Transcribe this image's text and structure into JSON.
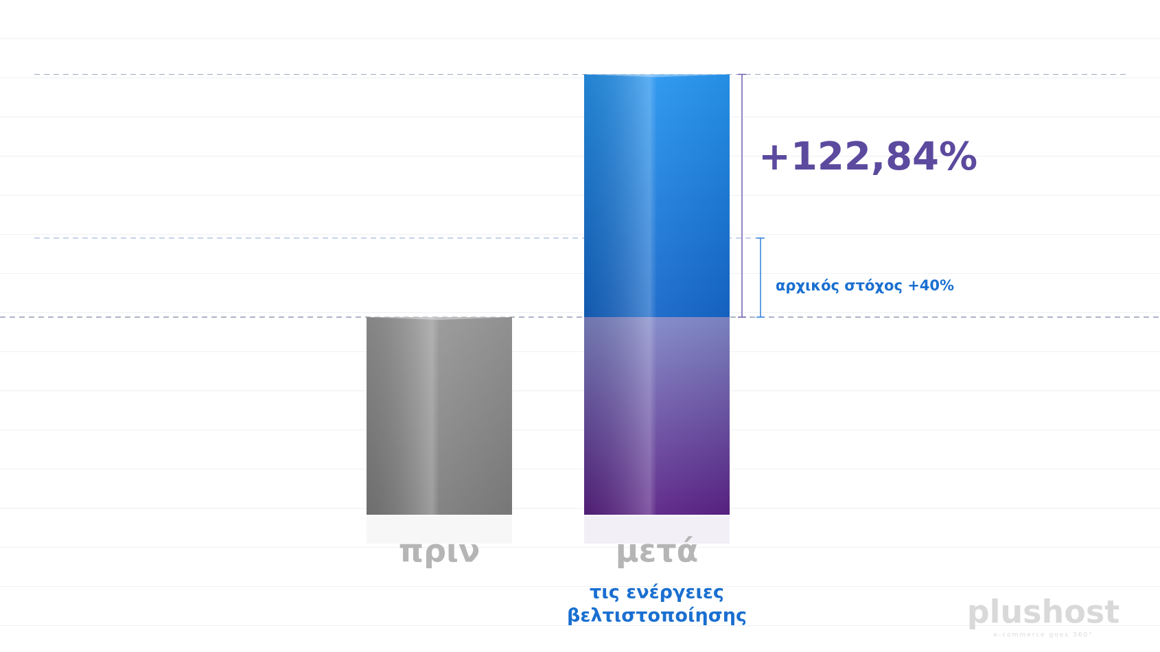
{
  "chart_data": {
    "type": "bar3d",
    "categories": [
      "πριν",
      "μετά"
    ],
    "category_notes": [
      null,
      [
        "τις ενέργειες",
        "βελτιστοποίησης"
      ]
    ],
    "values": [
      100,
      222.84
    ],
    "target_value": 140,
    "ylim": [
      0,
      240
    ],
    "colors": {
      "before": [
        "#bdbdbd",
        "#7d7d7d"
      ],
      "after_top": [
        "#2a9cf5",
        "#1566c8"
      ],
      "after_bottom": [
        "#8088c8",
        "#5a2285"
      ]
    },
    "annotations": {
      "increase": "+122,84%",
      "target": "αρχικός στόχος +40%"
    },
    "logo": {
      "name": "plushost",
      "tagline": "e-commerce goes 360°"
    }
  }
}
